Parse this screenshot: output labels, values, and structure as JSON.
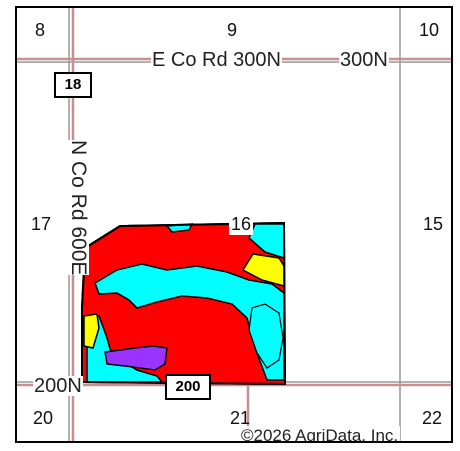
{
  "sections": [
    "8",
    "9",
    "10",
    "17",
    "16",
    "15",
    "20",
    "21",
    "22"
  ],
  "roads": {
    "e_co_rd": "E Co Rd 300N",
    "e_co_rd_suffix": "300N",
    "n_co_rd": "N Co Rd 600E",
    "road_200n": "200N"
  },
  "shields": [
    "18",
    "200"
  ],
  "copyright": "©2026 AgriData, Inc.",
  "colors": {
    "red": "#ff0000",
    "cyan": "#00ffff",
    "yellow": "#ffff00",
    "purple": "#9933ff",
    "road_line": "#c88f8f",
    "section_line": "#999999"
  }
}
